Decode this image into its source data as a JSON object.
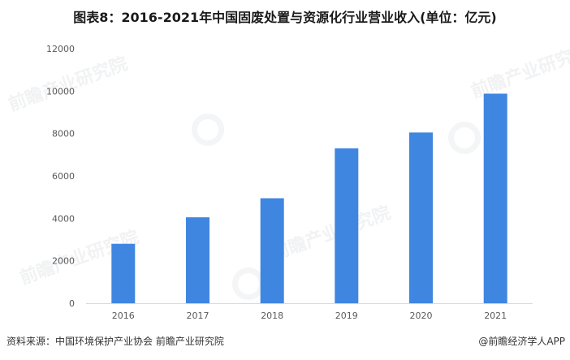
{
  "footer": {
    "source_text": "资料来源：中国环境保护产业协会 前瞻产业研究院",
    "brand_text": "@前瞻经济学人APP"
  },
  "chart_data": {
    "type": "bar",
    "title": "图表8：2016-2021年中国固废处置与资源化行业营业收入(单位：亿元)",
    "categories": [
      "2016",
      "2017",
      "2018",
      "2019",
      "2020",
      "2021"
    ],
    "values": [
      2800,
      4050,
      4950,
      7300,
      8050,
      9880
    ],
    "ylim": [
      0,
      12000
    ],
    "yticks": [
      0,
      2000,
      4000,
      6000,
      8000,
      10000,
      12000
    ],
    "xlabel": "",
    "ylabel": "",
    "grid": false,
    "bar_color": "#3f86e0",
    "watermark_text": "前瞻产业研究院"
  }
}
